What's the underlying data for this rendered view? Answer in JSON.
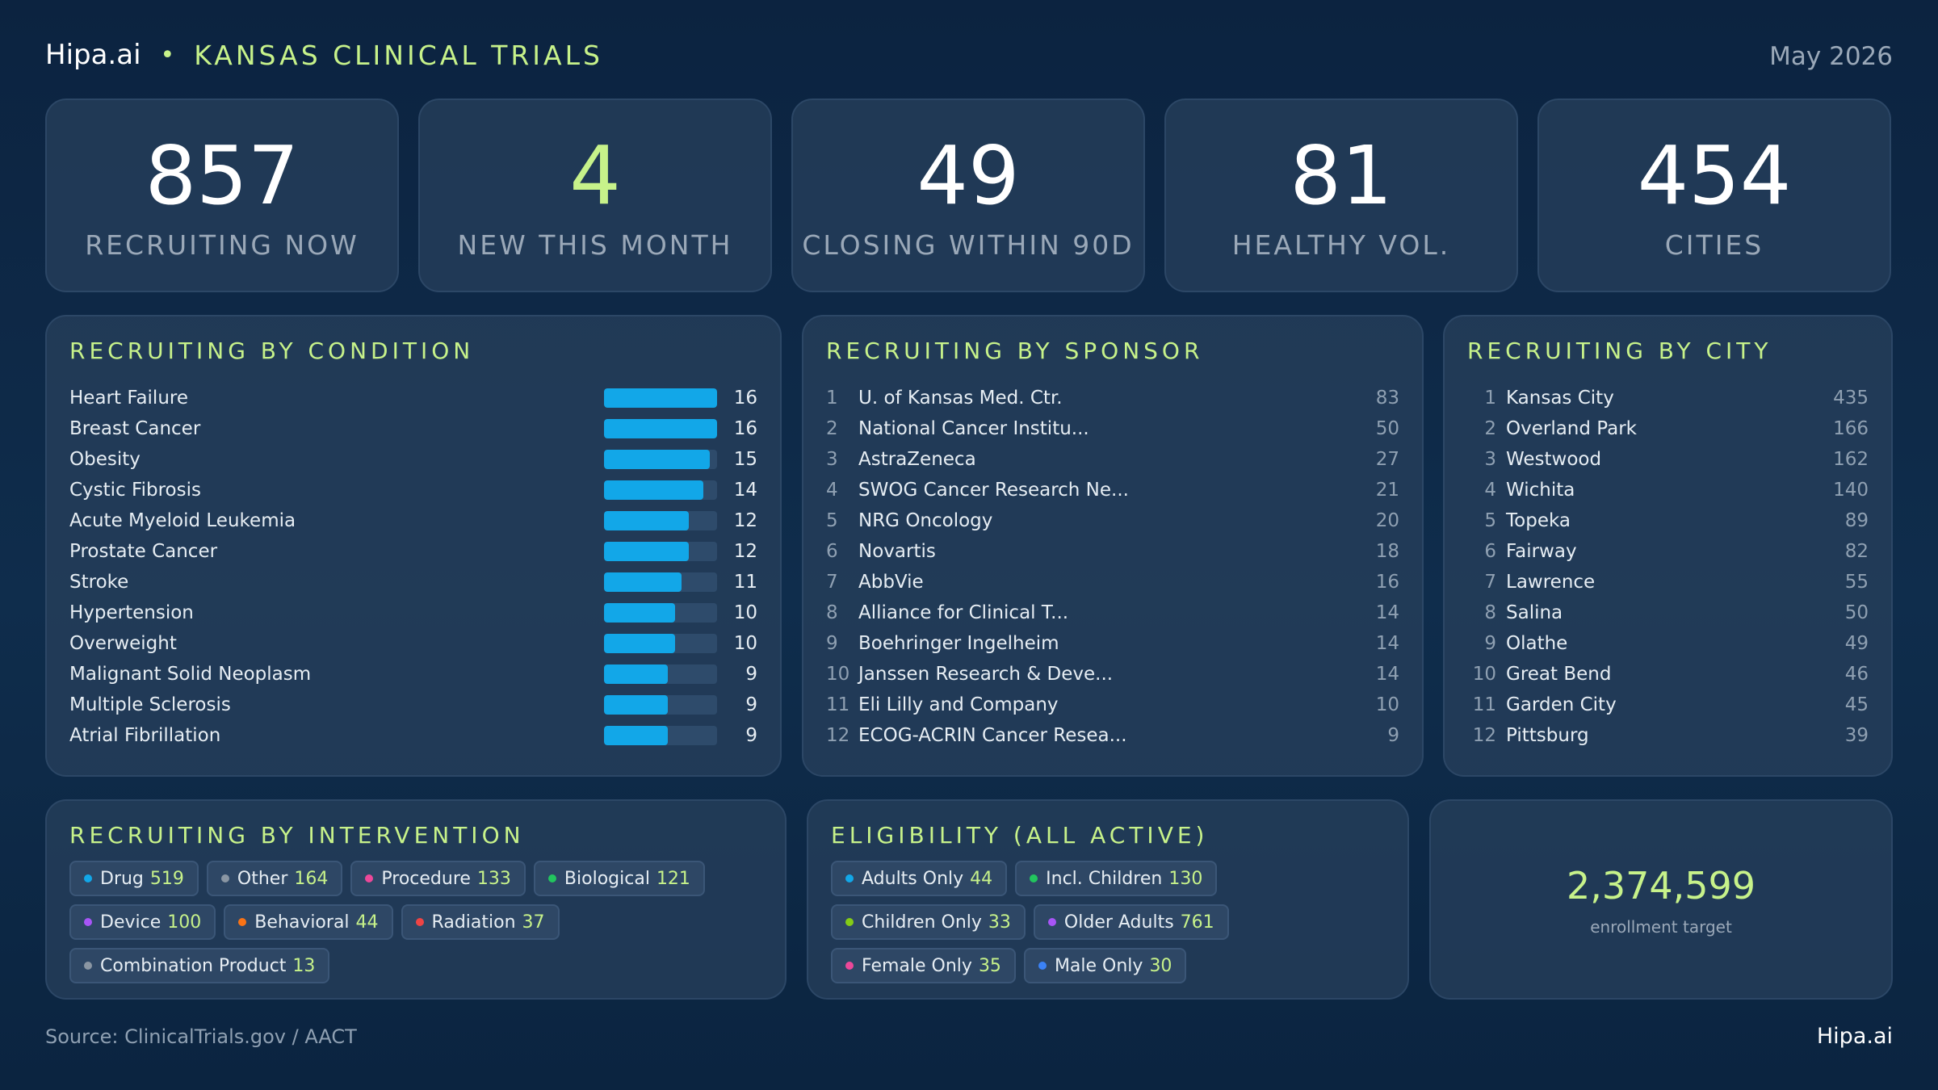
{
  "header": {
    "brand": "Hipa.ai",
    "separator": "•",
    "title": "KANSAS CLINICAL TRIALS",
    "date": "May 2026"
  },
  "kpis": [
    {
      "value": "857",
      "label": "RECRUITING NOW"
    },
    {
      "value": "4",
      "label": "NEW THIS MONTH"
    },
    {
      "value": "49",
      "label": "CLOSING WITHIN 90D"
    },
    {
      "value": "81",
      "label": "HEALTHY VOL."
    },
    {
      "value": "454",
      "label": "CITIES"
    }
  ],
  "condition": {
    "title": "RECRUITING BY CONDITION",
    "max": 16,
    "items": [
      {
        "name": "Heart Failure",
        "value": 16
      },
      {
        "name": "Breast Cancer",
        "value": 16
      },
      {
        "name": "Obesity",
        "value": 15
      },
      {
        "name": "Cystic Fibrosis",
        "value": 14
      },
      {
        "name": "Acute Myeloid Leukemia",
        "value": 12
      },
      {
        "name": "Prostate Cancer",
        "value": 12
      },
      {
        "name": "Stroke",
        "value": 11
      },
      {
        "name": "Hypertension",
        "value": 10
      },
      {
        "name": "Overweight",
        "value": 10
      },
      {
        "name": "Malignant Solid Neoplasm",
        "value": 9
      },
      {
        "name": "Multiple Sclerosis",
        "value": 9
      },
      {
        "name": "Atrial Fibrillation",
        "value": 9
      }
    ]
  },
  "sponsor": {
    "title": "RECRUITING BY SPONSOR",
    "items": [
      {
        "rank": "1",
        "name": "U. of Kansas Med. Ctr.",
        "value": "83"
      },
      {
        "rank": "2",
        "name": "National Cancer Institu...",
        "value": "50"
      },
      {
        "rank": "3",
        "name": "AstraZeneca",
        "value": "27"
      },
      {
        "rank": "4",
        "name": "SWOG Cancer Research Ne...",
        "value": "21"
      },
      {
        "rank": "5",
        "name": "NRG Oncology",
        "value": "20"
      },
      {
        "rank": "6",
        "name": "Novartis",
        "value": "18"
      },
      {
        "rank": "7",
        "name": "AbbVie",
        "value": "16"
      },
      {
        "rank": "8",
        "name": "Alliance for Clinical T...",
        "value": "14"
      },
      {
        "rank": "9",
        "name": "Boehringer Ingelheim",
        "value": "14"
      },
      {
        "rank": "10",
        "name": "Janssen Research & Deve...",
        "value": "14"
      },
      {
        "rank": "11",
        "name": "Eli Lilly and Company",
        "value": "10"
      },
      {
        "rank": "12",
        "name": "ECOG-ACRIN Cancer Resea...",
        "value": "9"
      }
    ]
  },
  "city": {
    "title": "RECRUITING BY CITY",
    "items": [
      {
        "rank": "1",
        "name": "Kansas City",
        "value": "435"
      },
      {
        "rank": "2",
        "name": "Overland Park",
        "value": "166"
      },
      {
        "rank": "3",
        "name": "Westwood",
        "value": "162"
      },
      {
        "rank": "4",
        "name": "Wichita",
        "value": "140"
      },
      {
        "rank": "5",
        "name": "Topeka",
        "value": "89"
      },
      {
        "rank": "6",
        "name": "Fairway",
        "value": "82"
      },
      {
        "rank": "7",
        "name": "Lawrence",
        "value": "55"
      },
      {
        "rank": "8",
        "name": "Salina",
        "value": "50"
      },
      {
        "rank": "9",
        "name": "Olathe",
        "value": "49"
      },
      {
        "rank": "10",
        "name": "Great Bend",
        "value": "46"
      },
      {
        "rank": "11",
        "name": "Garden City",
        "value": "45"
      },
      {
        "rank": "12",
        "name": "Pittsburg",
        "value": "39"
      }
    ]
  },
  "intervention": {
    "title": "RECRUITING BY INTERVENTION",
    "chips": [
      {
        "label": "Drug",
        "value": "519",
        "color": "#12a7e8"
      },
      {
        "label": "Other",
        "value": "164",
        "color": "#8a96a3"
      },
      {
        "label": "Procedure",
        "value": "133",
        "color": "#ec4899"
      },
      {
        "label": "Biological",
        "value": "121",
        "color": "#22c55e"
      },
      {
        "label": "Device",
        "value": "100",
        "color": "#a855f7"
      },
      {
        "label": "Behavioral",
        "value": "44",
        "color": "#f97316"
      },
      {
        "label": "Radiation",
        "value": "37",
        "color": "#ef4444"
      },
      {
        "label": "Combination Product",
        "value": "13",
        "color": "#8a96a3"
      }
    ]
  },
  "eligibility": {
    "title": "ELIGIBILITY (ALL ACTIVE)",
    "chips": [
      {
        "label": "Adults Only",
        "value": "44",
        "color": "#12a7e8"
      },
      {
        "label": "Incl. Children",
        "value": "130",
        "color": "#22c55e"
      },
      {
        "label": "Children Only",
        "value": "33",
        "color": "#84cc16"
      },
      {
        "label": "Older Adults",
        "value": "761",
        "color": "#a855f7"
      },
      {
        "label": "Female Only",
        "value": "35",
        "color": "#ec4899"
      },
      {
        "label": "Male Only",
        "value": "30",
        "color": "#3b82f6"
      }
    ]
  },
  "enrollment": {
    "value": "2,374,599",
    "label": "enrollment target"
  },
  "footer": {
    "source": "Source: ClinicalTrials.gov / AACT",
    "brand": "Hipa.ai"
  }
}
